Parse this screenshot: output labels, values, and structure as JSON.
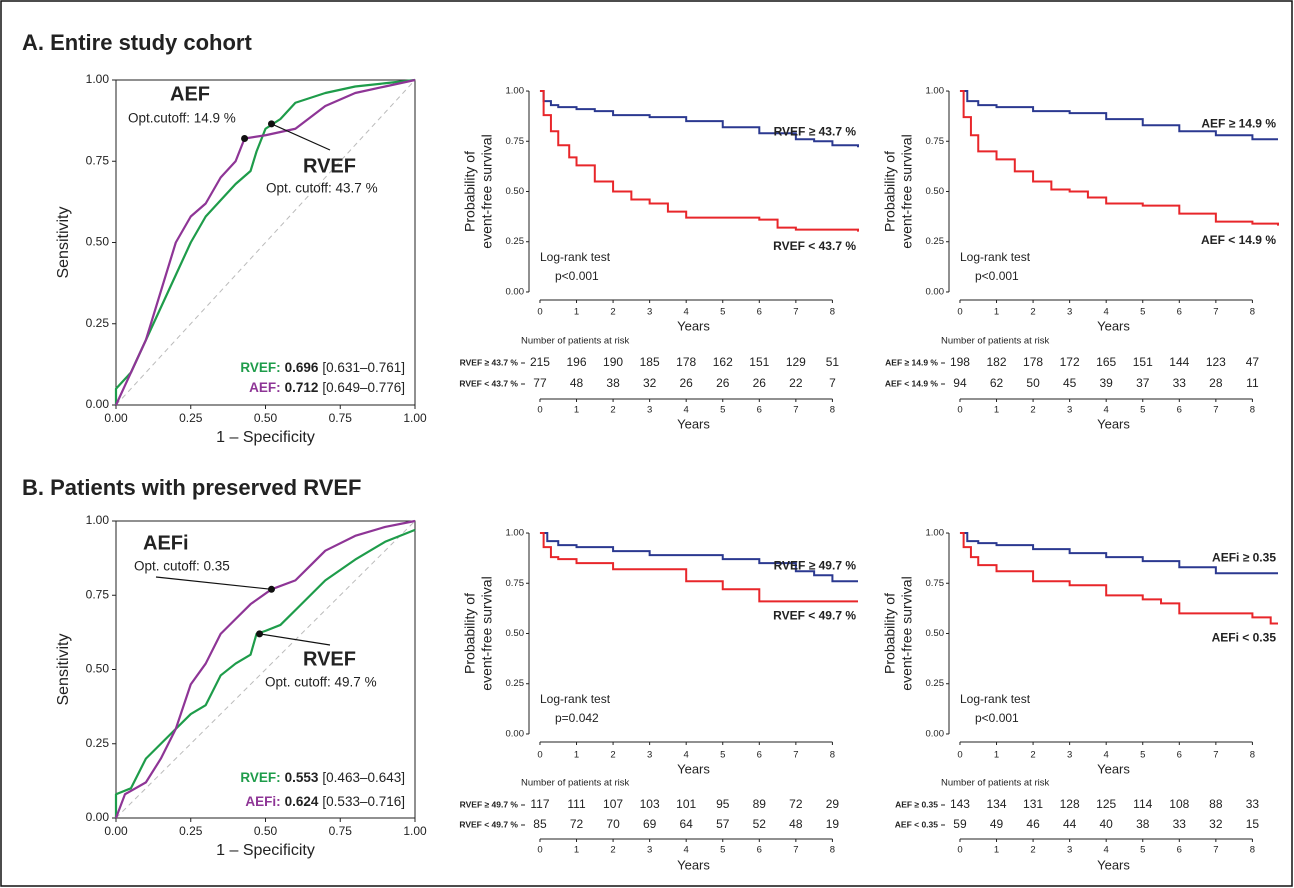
{
  "panels": [
    "A. Entire study cohort",
    "B. Patients with preserved RVEF"
  ],
  "chart_data": [
    {
      "type": "roc",
      "xlabel": "1 – Specificity",
      "ylabel": "Sensitivity",
      "xlim": [
        0,
        1
      ],
      "ylim": [
        0,
        1
      ],
      "xticks": [
        {
          "value": 0,
          "label": "0.00"
        },
        {
          "value": 0.25,
          "label": "0.25"
        },
        {
          "value": 0.5,
          "label": "0.50"
        },
        {
          "value": 0.75,
          "label": "0.75"
        },
        {
          "value": 1,
          "label": "1.00"
        }
      ],
      "yticks": [
        {
          "value": 0,
          "label": "0.00"
        },
        {
          "value": 0.25,
          "label": "0.25"
        },
        {
          "value": 0.5,
          "label": "0.50"
        },
        {
          "value": 0.75,
          "label": "0.75"
        },
        {
          "value": 1,
          "label": "1.00"
        }
      ],
      "series": [
        {
          "name": "RVEF",
          "color": "#1e9c4a",
          "x": [
            0,
            0,
            0.05,
            0.1,
            0.15,
            0.2,
            0.25,
            0.3,
            0.35,
            0.4,
            0.45,
            0.47,
            0.5,
            0.55,
            0.6,
            0.7,
            0.8,
            0.9,
            1
          ],
          "values": [
            0,
            0.05,
            0.1,
            0.2,
            0.3,
            0.4,
            0.5,
            0.58,
            0.63,
            0.68,
            0.72,
            0.78,
            0.85,
            0.88,
            0.93,
            0.96,
            0.98,
            0.99,
            1
          ],
          "cutoff": [
            0.52,
            0.865
          ],
          "cutoff_text": "Opt. cutoff: 43.7 %",
          "auc_label": "RVEF:",
          "auc": "0.696",
          "ci": "[0.631–0.761]"
        },
        {
          "name": "AEF",
          "color": "#8e3596",
          "x": [
            0,
            0.05,
            0.1,
            0.15,
            0.2,
            0.25,
            0.3,
            0.35,
            0.4,
            0.43,
            0.5,
            0.55,
            0.6,
            0.7,
            0.8,
            0.9,
            1
          ],
          "values": [
            0,
            0.1,
            0.2,
            0.35,
            0.5,
            0.58,
            0.62,
            0.7,
            0.75,
            0.82,
            0.83,
            0.84,
            0.85,
            0.92,
            0.96,
            0.98,
            1
          ],
          "cutoff": [
            0.43,
            0.82
          ],
          "cutoff_text": "Opt.cutoff: 14.9 %",
          "auc_label": "AEF:",
          "auc": "0.712",
          "ci": "[0.649–0.776]"
        }
      ]
    },
    {
      "type": "km",
      "xlabel": "Years",
      "ylabel": [
        "Probability of",
        "event-free survival"
      ],
      "xlim": [
        -0.3,
        8.7
      ],
      "ylim": [
        -0.04,
        1.04
      ],
      "xticks": [
        0,
        1,
        2,
        3,
        4,
        5,
        6,
        7,
        8
      ],
      "yticks": [
        {
          "value": 0,
          "label": "0.00"
        },
        {
          "value": 0.25,
          "label": "0.25"
        },
        {
          "value": 0.5,
          "label": "0.50"
        },
        {
          "value": 0.75,
          "label": "0.75"
        },
        {
          "value": 1,
          "label": "1.00"
        }
      ],
      "annotations": [
        "Log-rank test",
        "p<0.001"
      ],
      "series": [
        {
          "name": "RVEF ≥ 43.7 %",
          "color": "#2b3990",
          "x": [
            0,
            0.1,
            0.3,
            0.5,
            1,
            1.5,
            2,
            3,
            4,
            5,
            6,
            7,
            7.5,
            8,
            8.7
          ],
          "values": [
            1,
            0.95,
            0.93,
            0.92,
            0.91,
            0.9,
            0.88,
            0.87,
            0.85,
            0.82,
            0.79,
            0.76,
            0.75,
            0.73,
            0.72
          ]
        },
        {
          "name": "RVEF < 43.7 %",
          "color": "#e8262a",
          "x": [
            0,
            0.1,
            0.3,
            0.5,
            0.8,
            1,
            1.5,
            2,
            2.5,
            3,
            3.5,
            4,
            5,
            6,
            6.5,
            7,
            8,
            8.7
          ],
          "values": [
            1,
            0.88,
            0.8,
            0.73,
            0.67,
            0.63,
            0.55,
            0.5,
            0.46,
            0.44,
            0.4,
            0.37,
            0.37,
            0.36,
            0.32,
            0.31,
            0.31,
            0.3
          ]
        }
      ],
      "risk_table": {
        "title": "Number of patients at risk",
        "xlabel": "Years",
        "rows": [
          {
            "label": "RVEF ≥ 43.7 %",
            "color": "#2b3990",
            "values": [
              215,
              196,
              190,
              185,
              178,
              162,
              151,
              129,
              51
            ]
          },
          {
            "label": "RVEF < 43.7 %",
            "color": "#e8262a",
            "values": [
              77,
              48,
              38,
              32,
              26,
              26,
              26,
              22,
              7
            ]
          }
        ]
      }
    },
    {
      "type": "km",
      "xlabel": "Years",
      "ylabel": [
        "Probability of",
        "event-free survival"
      ],
      "xlim": [
        -0.3,
        8.7
      ],
      "ylim": [
        -0.04,
        1.04
      ],
      "xticks": [
        0,
        1,
        2,
        3,
        4,
        5,
        6,
        7,
        8
      ],
      "yticks": [
        {
          "value": 0,
          "label": "0.00"
        },
        {
          "value": 0.25,
          "label": "0.25"
        },
        {
          "value": 0.5,
          "label": "0.50"
        },
        {
          "value": 0.75,
          "label": "0.75"
        },
        {
          "value": 1,
          "label": "1.00"
        }
      ],
      "annotations": [
        "Log-rank test",
        "p<0.001"
      ],
      "series": [
        {
          "name": "AEF ≥ 14.9 %",
          "color": "#2b3990",
          "x": [
            0,
            0.2,
            0.5,
            1,
            2,
            3,
            4,
            5,
            6,
            7,
            8,
            8.7
          ],
          "values": [
            1,
            0.95,
            0.93,
            0.92,
            0.9,
            0.89,
            0.86,
            0.83,
            0.8,
            0.78,
            0.76,
            0.76
          ]
        },
        {
          "name": "AEF < 14.9 %",
          "color": "#e8262a",
          "x": [
            0,
            0.1,
            0.3,
            0.5,
            1,
            1.5,
            2,
            2.5,
            3,
            3.5,
            4,
            5,
            6,
            7,
            8,
            8.7
          ],
          "values": [
            1,
            0.87,
            0.78,
            0.7,
            0.66,
            0.6,
            0.55,
            0.51,
            0.5,
            0.47,
            0.44,
            0.43,
            0.39,
            0.35,
            0.34,
            0.33
          ]
        }
      ],
      "risk_table": {
        "title": "Number of patients at risk",
        "xlabel": "Years",
        "rows": [
          {
            "label": "AEF ≥ 14.9 %",
            "color": "#2b3990",
            "values": [
              198,
              182,
              178,
              172,
              165,
              151,
              144,
              123,
              47
            ]
          },
          {
            "label": "AEF < 14.9 %",
            "color": "#e8262a",
            "values": [
              94,
              62,
              50,
              45,
              39,
              37,
              33,
              28,
              11
            ]
          }
        ]
      }
    },
    {
      "type": "roc",
      "xlabel": "1 – Specificity",
      "ylabel": "Sensitivity",
      "xlim": [
        0,
        1
      ],
      "ylim": [
        0,
        1
      ],
      "xticks": [
        {
          "value": 0,
          "label": "0.00"
        },
        {
          "value": 0.25,
          "label": "0.25"
        },
        {
          "value": 0.5,
          "label": "0.50"
        },
        {
          "value": 0.75,
          "label": "0.75"
        },
        {
          "value": 1,
          "label": "1.00"
        }
      ],
      "yticks": [
        {
          "value": 0,
          "label": "0.00"
        },
        {
          "value": 0.25,
          "label": "0.25"
        },
        {
          "value": 0.5,
          "label": "0.50"
        },
        {
          "value": 0.75,
          "label": "0.75"
        },
        {
          "value": 1,
          "label": "1.00"
        }
      ],
      "series": [
        {
          "name": "RVEF",
          "color": "#1e9c4a",
          "x": [
            0,
            0,
            0.05,
            0.1,
            0.15,
            0.2,
            0.25,
            0.3,
            0.35,
            0.4,
            0.45,
            0.47,
            0.5,
            0.55,
            0.6,
            0.65,
            0.7,
            0.8,
            0.9,
            1
          ],
          "values": [
            0,
            0.08,
            0.1,
            0.2,
            0.25,
            0.3,
            0.35,
            0.38,
            0.48,
            0.52,
            0.55,
            0.62,
            0.63,
            0.65,
            0.7,
            0.75,
            0.8,
            0.87,
            0.93,
            0.97
          ],
          "cutoff": [
            0.48,
            0.62
          ],
          "cutoff_text": "Opt. cutoff: 49.7 %",
          "auc_label": "RVEF:",
          "auc": "0.553",
          "ci": "[0.463–0.643]"
        },
        {
          "name": "AEFi",
          "color": "#8e3596",
          "x": [
            0,
            0.03,
            0.1,
            0.15,
            0.2,
            0.25,
            0.3,
            0.35,
            0.4,
            0.45,
            0.52,
            0.6,
            0.65,
            0.7,
            0.8,
            0.9,
            1
          ],
          "values": [
            0,
            0.08,
            0.12,
            0.2,
            0.3,
            0.45,
            0.52,
            0.62,
            0.67,
            0.72,
            0.77,
            0.8,
            0.85,
            0.9,
            0.95,
            0.98,
            1
          ],
          "cutoff": [
            0.52,
            0.77
          ],
          "cutoff_text": "Opt. cutoff: 0.35",
          "auc_label": "AEFi:",
          "auc": "0.624",
          "ci": "[0.533–0.716]"
        }
      ]
    },
    {
      "type": "km",
      "xlabel": "Years",
      "ylabel": [
        "Probability of",
        "event-free survival"
      ],
      "xlim": [
        -0.3,
        8.7
      ],
      "ylim": [
        -0.04,
        1.04
      ],
      "xticks": [
        0,
        1,
        2,
        3,
        4,
        5,
        6,
        7,
        8
      ],
      "yticks": [
        {
          "value": 0,
          "label": "0.00"
        },
        {
          "value": 0.25,
          "label": "0.25"
        },
        {
          "value": 0.5,
          "label": "0.50"
        },
        {
          "value": 0.75,
          "label": "0.75"
        },
        {
          "value": 1,
          "label": "1.00"
        }
      ],
      "annotations": [
        "Log-rank test",
        "p=0.042"
      ],
      "series": [
        {
          "name": "RVEF ≥ 49.7 %",
          "color": "#2b3990",
          "x": [
            0,
            0.2,
            0.5,
            1,
            2,
            3,
            4,
            5,
            6,
            7,
            7.5,
            8,
            8.7
          ],
          "values": [
            1,
            0.96,
            0.94,
            0.93,
            0.91,
            0.89,
            0.89,
            0.87,
            0.85,
            0.81,
            0.79,
            0.76,
            0.76
          ]
        },
        {
          "name": "RVEF < 49.7 %",
          "color": "#e8262a",
          "x": [
            0,
            0.1,
            0.3,
            0.5,
            1,
            2,
            3,
            4,
            5,
            6,
            7,
            8,
            8.7
          ],
          "values": [
            1,
            0.93,
            0.88,
            0.87,
            0.85,
            0.82,
            0.82,
            0.76,
            0.72,
            0.66,
            0.66,
            0.66,
            0.66
          ]
        }
      ],
      "risk_table": {
        "title": "Number of patients at risk",
        "xlabel": "Years",
        "rows": [
          {
            "label": "RVEF ≥ 49.7 %",
            "color": "#2b3990",
            "values": [
              117,
              111,
              107,
              103,
              101,
              95,
              89,
              72,
              29
            ]
          },
          {
            "label": "RVEF < 49.7 %",
            "color": "#e8262a",
            "values": [
              85,
              72,
              70,
              69,
              64,
              57,
              52,
              48,
              19
            ]
          }
        ]
      }
    },
    {
      "type": "km",
      "xlabel": "Years",
      "ylabel": [
        "Probability of",
        "event-free survival"
      ],
      "xlim": [
        -0.3,
        8.7
      ],
      "ylim": [
        -0.04,
        1.04
      ],
      "xticks": [
        0,
        1,
        2,
        3,
        4,
        5,
        6,
        7,
        8
      ],
      "yticks": [
        {
          "value": 0,
          "label": "0.00"
        },
        {
          "value": 0.25,
          "label": "0.25"
        },
        {
          "value": 0.5,
          "label": "0.50"
        },
        {
          "value": 0.75,
          "label": "0.75"
        },
        {
          "value": 1,
          "label": "1.00"
        }
      ],
      "annotations": [
        "Log-rank test",
        "p<0.001"
      ],
      "series": [
        {
          "name": "AEFi ≥ 0.35",
          "color": "#2b3990",
          "x": [
            0,
            0.2,
            0.5,
            1,
            2,
            3,
            4,
            5,
            6,
            7,
            8,
            8.7
          ],
          "values": [
            1,
            0.96,
            0.95,
            0.94,
            0.92,
            0.9,
            0.88,
            0.86,
            0.83,
            0.8,
            0.8,
            0.8
          ]
        },
        {
          "name": "AEFi < 0.35",
          "color": "#e8262a",
          "x": [
            0,
            0.1,
            0.3,
            0.5,
            1,
            2,
            3,
            4,
            5,
            5.5,
            6,
            7,
            8,
            8.5,
            8.7
          ],
          "values": [
            1,
            0.93,
            0.88,
            0.84,
            0.81,
            0.76,
            0.74,
            0.69,
            0.67,
            0.65,
            0.6,
            0.6,
            0.58,
            0.55,
            0.55
          ]
        }
      ],
      "risk_table": {
        "title": "Number of patients at risk",
        "xlabel": "Years",
        "rows": [
          {
            "label": "AEF ≥ 0.35",
            "color": "#2b3990",
            "values": [
              143,
              134,
              131,
              128,
              125,
              114,
              108,
              88,
              33
            ]
          },
          {
            "label": "AEF < 0.35",
            "color": "#e8262a",
            "values": [
              59,
              49,
              46,
              44,
              40,
              38,
              33,
              32,
              15
            ]
          }
        ]
      }
    }
  ]
}
